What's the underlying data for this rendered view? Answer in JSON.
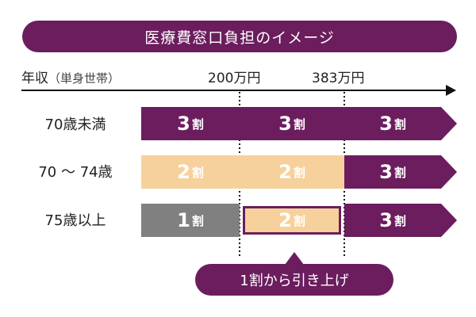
{
  "title": "医療費窓口負担のイメージ",
  "axis": {
    "label": "年収",
    "unit": "（単身世帯）",
    "ticks": [
      "200万円",
      "383万円"
    ]
  },
  "rows": [
    {
      "label": "70歳未満",
      "cells": [
        {
          "value": "3",
          "suffix": "割",
          "style": "purple"
        },
        {
          "value": "3",
          "suffix": "割",
          "style": "purple"
        },
        {
          "value": "3",
          "suffix": "割",
          "style": "purple"
        }
      ]
    },
    {
      "label": "70 ～ 74歳",
      "cells": [
        {
          "value": "2",
          "suffix": "割",
          "style": "beige"
        },
        {
          "value": "2",
          "suffix": "割",
          "style": "beige"
        },
        {
          "value": "3",
          "suffix": "割",
          "style": "purple"
        }
      ]
    },
    {
      "label": "75歳以上",
      "cells": [
        {
          "value": "1",
          "suffix": "割",
          "style": "gray"
        },
        {
          "value": "2",
          "suffix": "割",
          "style": "beige-highlight"
        },
        {
          "value": "3",
          "suffix": "割",
          "style": "purple"
        }
      ]
    }
  ],
  "callout": "1割から引き上げ",
  "colors": {
    "purple": "#6b1d5e",
    "beige": "#f7d19b",
    "gray": "#808080",
    "text_dark": "#222222"
  }
}
